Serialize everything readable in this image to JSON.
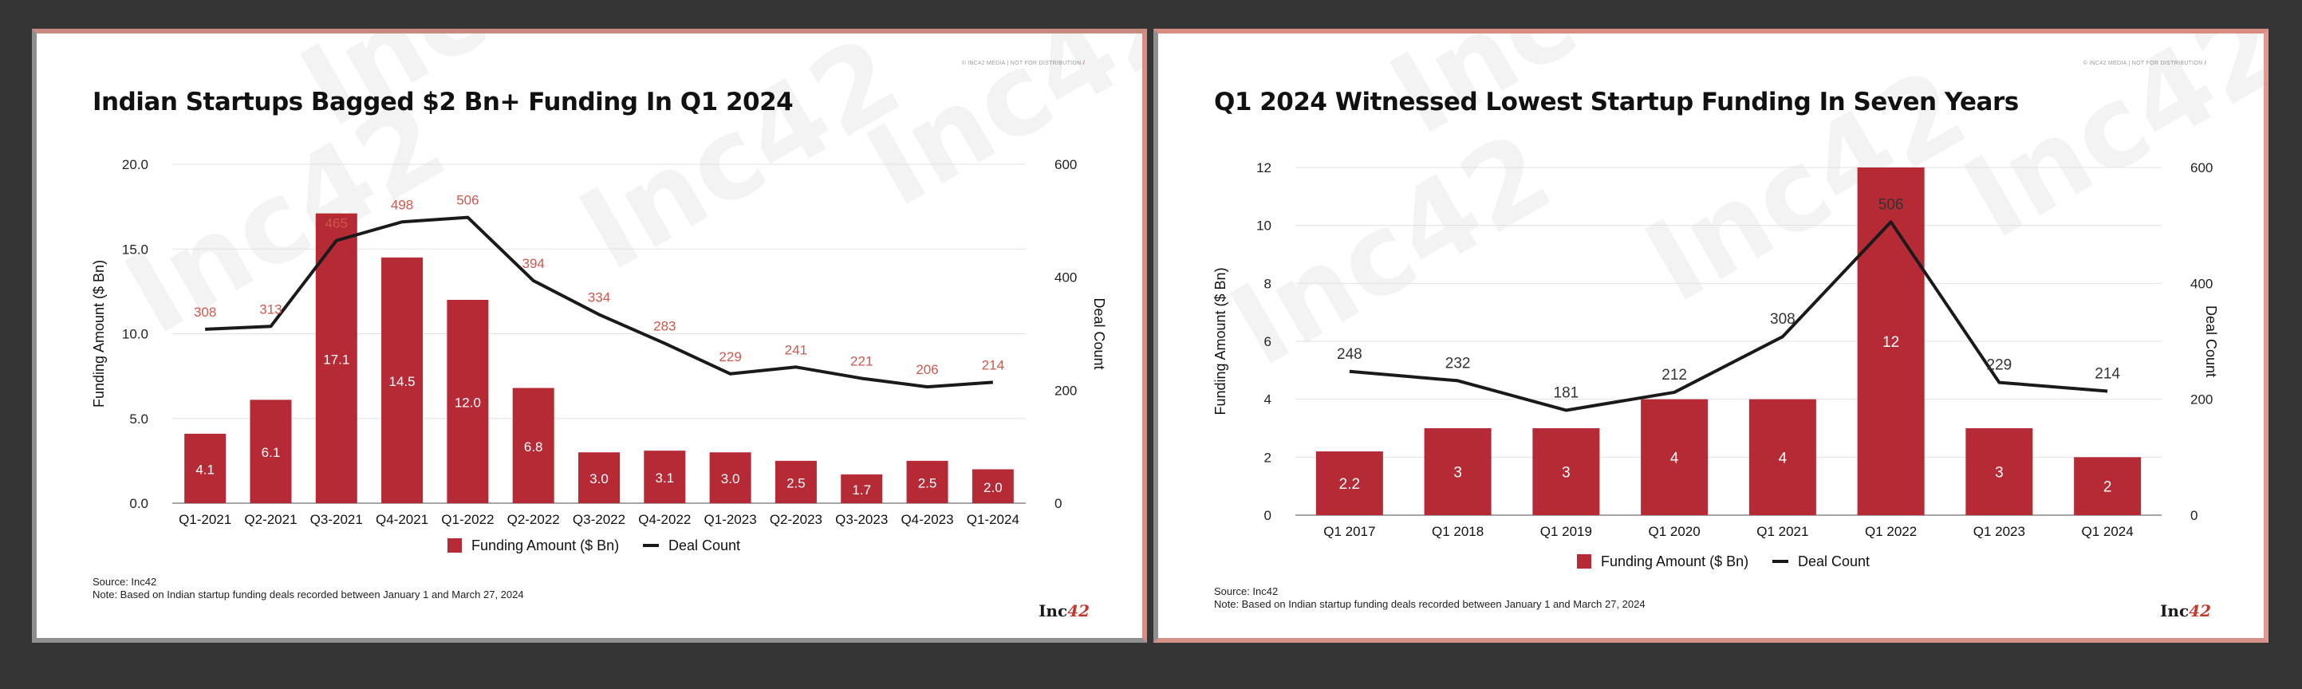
{
  "panels": [
    {
      "title": "Indian Startups Bagged $2 Bn+ Funding In Q1 2024",
      "tag": "© INC42 MEDIA | NOT FOR DISTRIBUTION",
      "source": "Source: Inc42",
      "note": "Note: Based on Indian startup funding deals recorded between January 1 and March 27, 2024",
      "logo_text": "Inc",
      "logo_num": "42",
      "watermark": "Inc42"
    },
    {
      "title": "Q1 2024 Witnessed Lowest Startup Funding In Seven Years",
      "tag": "© INC42 MEDIA | NOT FOR DISTRIBUTION",
      "source": "Source: Inc42",
      "note": "Note: Based on Indian startup funding deals recorded between January 1 and March 27, 2024",
      "logo_text": "Inc",
      "logo_num": "42",
      "watermark": "Inc42"
    }
  ],
  "chart_data": [
    {
      "type": "bar",
      "title": "Indian Startups Bagged $2 Bn+ Funding In Q1 2024",
      "categories": [
        "Q1-2021",
        "Q2-2021",
        "Q3-2021",
        "Q4-2021",
        "Q1-2022",
        "Q2-2022",
        "Q3-2022",
        "Q4-2022",
        "Q1-2023",
        "Q2-2023",
        "Q3-2023",
        "Q4-2023",
        "Q1-2024"
      ],
      "series": [
        {
          "name": "Funding Amount ($ Bn)",
          "type": "bar",
          "axis": "left",
          "values": [
            4.1,
            6.1,
            17.1,
            14.5,
            12.0,
            6.8,
            3.0,
            3.1,
            3.0,
            2.5,
            1.7,
            2.5,
            2.0
          ],
          "labels": [
            "4.1",
            "6.1",
            "17.1",
            "14.5",
            "12.0",
            "6.8",
            "3.0",
            "3.1",
            "3.0",
            "2.5",
            "1.7",
            "2.5",
            "2.0"
          ],
          "color": "#b52a35"
        },
        {
          "name": "Deal Count",
          "type": "line",
          "axis": "right",
          "values": [
            308,
            313,
            465,
            498,
            506,
            394,
            334,
            283,
            229,
            241,
            221,
            206,
            214
          ],
          "labels": [
            "308",
            "313",
            "465",
            "498",
            "506",
            "394",
            "334",
            "283",
            "229",
            "241",
            "221",
            "206",
            "214"
          ],
          "color": "#1a1a1a",
          "label_color": "#d0584c"
        }
      ],
      "ylabel": "Funding Amount ($ Bn)",
      "y2label": "Deal Count",
      "ylim": [
        0,
        20
      ],
      "y2lim": [
        0,
        600
      ],
      "yticks": [
        "0.0",
        "5.0",
        "10.0",
        "15.0",
        "20.0"
      ],
      "y2ticks": [
        "0",
        "200",
        "400",
        "600"
      ],
      "grid": true,
      "legend": "bottom-center"
    },
    {
      "type": "bar",
      "title": "Q1 2024 Witnessed Lowest Startup Funding In Seven Years",
      "categories": [
        "Q1 2017",
        "Q1 2018",
        "Q1 2019",
        "Q1 2020",
        "Q1 2021",
        "Q1 2022",
        "Q1 2023",
        "Q1 2024"
      ],
      "series": [
        {
          "name": "Funding Amount ($ Bn)",
          "type": "bar",
          "axis": "left",
          "values": [
            2.2,
            3,
            3,
            4,
            4,
            12,
            3,
            2
          ],
          "labels": [
            "2.2",
            "3",
            "3",
            "4",
            "4",
            "12",
            "3",
            "2"
          ],
          "color": "#b52a35"
        },
        {
          "name": "Deal Count",
          "type": "line",
          "axis": "right",
          "values": [
            248,
            232,
            181,
            212,
            308,
            506,
            229,
            214
          ],
          "labels": [
            "248",
            "232",
            "181",
            "212",
            "308",
            "506",
            "229",
            "214"
          ],
          "color": "#1a1a1a",
          "label_color": "#333333"
        }
      ],
      "ylabel": "Funding Amount ($ Bn)",
      "y2label": "Deal Count",
      "ylim": [
        0,
        12
      ],
      "y2lim": [
        0,
        600
      ],
      "yticks": [
        "0",
        "2",
        "4",
        "6",
        "8",
        "10",
        "12"
      ],
      "y2ticks": [
        "0",
        "200",
        "400",
        "600"
      ],
      "grid": true,
      "legend": "bottom-center"
    }
  ]
}
